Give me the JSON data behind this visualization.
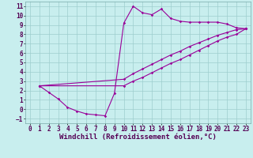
{
  "xlabel": "Windchill (Refroidissement éolien,°C)",
  "bg_color": "#c8eeee",
  "line_color": "#990099",
  "grid_color": "#aadddd",
  "xlim": [
    -0.5,
    23.5
  ],
  "ylim": [
    -1.5,
    11.5
  ],
  "xticks": [
    0,
    1,
    2,
    3,
    4,
    5,
    6,
    7,
    8,
    9,
    10,
    11,
    12,
    13,
    14,
    15,
    16,
    17,
    18,
    19,
    20,
    21,
    22,
    23
  ],
  "yticks": [
    -1,
    0,
    1,
    2,
    3,
    4,
    5,
    6,
    7,
    8,
    9,
    10,
    11
  ],
  "line1_x": [
    1,
    2,
    3,
    4,
    5,
    6,
    7,
    8,
    9,
    10,
    11,
    12,
    13,
    14,
    15,
    16,
    17,
    18,
    19,
    20,
    21,
    22,
    23
  ],
  "line1_y": [
    2.5,
    1.8,
    1.1,
    0.2,
    -0.2,
    -0.5,
    -0.6,
    -0.7,
    1.7,
    9.2,
    11.0,
    10.3,
    10.1,
    10.7,
    9.7,
    9.4,
    9.3,
    9.3,
    9.3,
    9.3,
    9.1,
    8.7,
    8.6
  ],
  "line2_x": [
    1,
    10,
    11,
    12,
    13,
    14,
    15,
    16,
    17,
    18,
    19,
    20,
    21,
    22,
    23
  ],
  "line2_y": [
    2.5,
    3.2,
    3.8,
    4.3,
    4.8,
    5.3,
    5.8,
    6.2,
    6.7,
    7.1,
    7.5,
    7.9,
    8.2,
    8.5,
    8.6
  ],
  "line3_x": [
    1,
    10,
    11,
    12,
    13,
    14,
    15,
    16,
    17,
    18,
    19,
    20,
    21,
    22,
    23
  ],
  "line3_y": [
    2.5,
    2.5,
    3.0,
    3.4,
    3.9,
    4.4,
    4.9,
    5.3,
    5.8,
    6.3,
    6.8,
    7.3,
    7.7,
    8.0,
    8.6
  ],
  "tick_fontsize": 5.5,
  "label_fontsize": 6.5
}
